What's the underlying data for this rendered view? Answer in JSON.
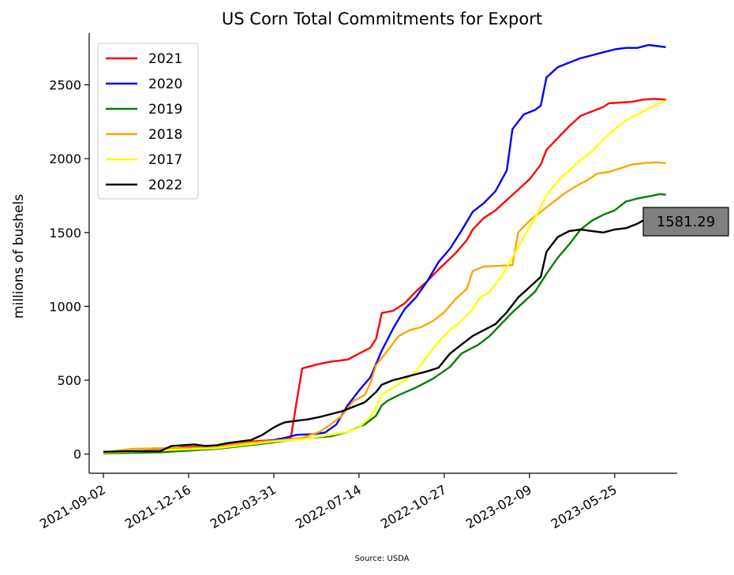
{
  "chart_data": {
    "type": "line",
    "title": "US Corn Total Commitments for Export",
    "xlabel": "",
    "ylabel": "millions of bushels",
    "source": "Source: USDA",
    "ylim": [
      -130,
      2850
    ],
    "y_ticks": [
      0,
      500,
      1000,
      1500,
      2000,
      2500
    ],
    "x_ticks": [
      "2021-09-02",
      "2021-12-16",
      "2022-03-31",
      "2022-07-14",
      "2022-10-27",
      "2023-02-09",
      "2023-05-25"
    ],
    "xlim_weeks": [
      -2.5,
      101
    ],
    "legend_position": "top-left",
    "annotation": {
      "text": "1581.29",
      "color": "#808080"
    },
    "series": [
      {
        "name": "2021",
        "color": "#ff0000",
        "points": [
          [
            0,
            10
          ],
          [
            5,
            15
          ],
          [
            10,
            30
          ],
          [
            14,
            45
          ],
          [
            20,
            55
          ],
          [
            26,
            85
          ],
          [
            30,
            95
          ],
          [
            33,
            110
          ],
          [
            34,
            350
          ],
          [
            35,
            580
          ],
          [
            36,
            590
          ],
          [
            38,
            610
          ],
          [
            40,
            625
          ],
          [
            43,
            640
          ],
          [
            45,
            680
          ],
          [
            47,
            720
          ],
          [
            48,
            780
          ],
          [
            49,
            955
          ],
          [
            51,
            970
          ],
          [
            53,
            1020
          ],
          [
            55,
            1100
          ],
          [
            57,
            1170
          ],
          [
            59,
            1250
          ],
          [
            62,
            1360
          ],
          [
            64,
            1450
          ],
          [
            65,
            1520
          ],
          [
            67,
            1600
          ],
          [
            69,
            1650
          ],
          [
            71,
            1720
          ],
          [
            73,
            1790
          ],
          [
            75,
            1860
          ],
          [
            77,
            1960
          ],
          [
            78,
            2060
          ],
          [
            80,
            2140
          ],
          [
            82,
            2220
          ],
          [
            84,
            2290
          ],
          [
            86,
            2320
          ],
          [
            88,
            2350
          ],
          [
            89,
            2375
          ],
          [
            91,
            2380
          ],
          [
            93,
            2385
          ],
          [
            95,
            2400
          ],
          [
            97,
            2405
          ],
          [
            99,
            2400
          ]
        ]
      },
      {
        "name": "2020",
        "color": "#0000ff",
        "points": [
          [
            0,
            5
          ],
          [
            10,
            15
          ],
          [
            20,
            40
          ],
          [
            28,
            80
          ],
          [
            32,
            110
          ],
          [
            34,
            130
          ],
          [
            37,
            135
          ],
          [
            39,
            145
          ],
          [
            41,
            200
          ],
          [
            43,
            330
          ],
          [
            45,
            430
          ],
          [
            47,
            520
          ],
          [
            49,
            700
          ],
          [
            51,
            850
          ],
          [
            53,
            980
          ],
          [
            55,
            1060
          ],
          [
            57,
            1170
          ],
          [
            59,
            1300
          ],
          [
            61,
            1390
          ],
          [
            63,
            1510
          ],
          [
            65,
            1640
          ],
          [
            67,
            1700
          ],
          [
            69,
            1780
          ],
          [
            71,
            1920
          ],
          [
            72,
            2200
          ],
          [
            74,
            2300
          ],
          [
            76,
            2330
          ],
          [
            77,
            2360
          ],
          [
            78,
            2550
          ],
          [
            80,
            2620
          ],
          [
            82,
            2650
          ],
          [
            84,
            2680
          ],
          [
            86,
            2700
          ],
          [
            88,
            2720
          ],
          [
            90,
            2740
          ],
          [
            92,
            2750
          ],
          [
            94,
            2750
          ],
          [
            96,
            2770
          ],
          [
            99,
            2755
          ]
        ]
      },
      {
        "name": "2019",
        "color": "#008000",
        "points": [
          [
            0,
            5
          ],
          [
            10,
            12
          ],
          [
            20,
            35
          ],
          [
            28,
            70
          ],
          [
            35,
            105
          ],
          [
            40,
            120
          ],
          [
            43,
            150
          ],
          [
            46,
            200
          ],
          [
            48,
            260
          ],
          [
            49,
            330
          ],
          [
            50,
            360
          ],
          [
            52,
            400
          ],
          [
            55,
            450
          ],
          [
            58,
            510
          ],
          [
            61,
            590
          ],
          [
            63,
            680
          ],
          [
            65,
            720
          ],
          [
            66,
            740
          ],
          [
            68,
            800
          ],
          [
            70,
            880
          ],
          [
            72,
            960
          ],
          [
            74,
            1030
          ],
          [
            76,
            1100
          ],
          [
            78,
            1220
          ],
          [
            80,
            1330
          ],
          [
            82,
            1420
          ],
          [
            84,
            1520
          ],
          [
            86,
            1580
          ],
          [
            88,
            1620
          ],
          [
            90,
            1650
          ],
          [
            91,
            1680
          ],
          [
            92,
            1710
          ],
          [
            94,
            1730
          ],
          [
            96,
            1745
          ],
          [
            98,
            1760
          ],
          [
            99,
            1755
          ]
        ]
      },
      {
        "name": "2018",
        "color": "#ffa500",
        "points": [
          [
            0,
            10
          ],
          [
            5,
            35
          ],
          [
            10,
            40
          ],
          [
            15,
            40
          ],
          [
            20,
            50
          ],
          [
            25,
            75
          ],
          [
            30,
            90
          ],
          [
            35,
            110
          ],
          [
            38,
            150
          ],
          [
            40,
            200
          ],
          [
            42,
            260
          ],
          [
            44,
            360
          ],
          [
            46,
            400
          ],
          [
            47,
            480
          ],
          [
            48,
            600
          ],
          [
            50,
            700
          ],
          [
            52,
            800
          ],
          [
            54,
            840
          ],
          [
            56,
            860
          ],
          [
            58,
            900
          ],
          [
            60,
            960
          ],
          [
            62,
            1050
          ],
          [
            64,
            1120
          ],
          [
            65,
            1240
          ],
          [
            67,
            1270
          ],
          [
            70,
            1275
          ],
          [
            72,
            1280
          ],
          [
            73,
            1500
          ],
          [
            75,
            1580
          ],
          [
            77,
            1640
          ],
          [
            79,
            1700
          ],
          [
            81,
            1760
          ],
          [
            83,
            1810
          ],
          [
            85,
            1850
          ],
          [
            87,
            1900
          ],
          [
            89,
            1910
          ],
          [
            91,
            1935
          ],
          [
            93,
            1960
          ],
          [
            95,
            1970
          ],
          [
            97,
            1975
          ],
          [
            99,
            1970
          ]
        ]
      },
      {
        "name": "2017",
        "color": "#ffff00",
        "points": [
          [
            0,
            10
          ],
          [
            10,
            25
          ],
          [
            20,
            40
          ],
          [
            30,
            85
          ],
          [
            35,
            100
          ],
          [
            40,
            130
          ],
          [
            43,
            150
          ],
          [
            45,
            180
          ],
          [
            47,
            250
          ],
          [
            48,
            320
          ],
          [
            49,
            400
          ],
          [
            51,
            450
          ],
          [
            53,
            500
          ],
          [
            55,
            560
          ],
          [
            57,
            660
          ],
          [
            59,
            760
          ],
          [
            61,
            840
          ],
          [
            63,
            900
          ],
          [
            65,
            980
          ],
          [
            66,
            1050
          ],
          [
            68,
            1100
          ],
          [
            70,
            1200
          ],
          [
            72,
            1330
          ],
          [
            74,
            1470
          ],
          [
            76,
            1600
          ],
          [
            78,
            1750
          ],
          [
            80,
            1850
          ],
          [
            82,
            1920
          ],
          [
            84,
            1990
          ],
          [
            86,
            2050
          ],
          [
            88,
            2130
          ],
          [
            90,
            2200
          ],
          [
            92,
            2260
          ],
          [
            94,
            2300
          ],
          [
            96,
            2340
          ],
          [
            98,
            2380
          ],
          [
            99,
            2390
          ]
        ]
      },
      {
        "name": "2022",
        "color": "#000000",
        "points": [
          [
            0,
            15
          ],
          [
            5,
            20
          ],
          [
            10,
            20
          ],
          [
            12,
            55
          ],
          [
            14,
            60
          ],
          [
            16,
            65
          ],
          [
            18,
            55
          ],
          [
            20,
            60
          ],
          [
            22,
            75
          ],
          [
            24,
            85
          ],
          [
            26,
            95
          ],
          [
            28,
            130
          ],
          [
            30,
            180
          ],
          [
            31,
            200
          ],
          [
            32,
            215
          ],
          [
            34,
            225
          ],
          [
            36,
            235
          ],
          [
            38,
            250
          ],
          [
            40,
            270
          ],
          [
            42,
            290
          ],
          [
            44,
            320
          ],
          [
            46,
            350
          ],
          [
            48,
            420
          ],
          [
            49,
            470
          ],
          [
            51,
            500
          ],
          [
            53,
            520
          ],
          [
            55,
            540
          ],
          [
            57,
            560
          ],
          [
            59,
            585
          ],
          [
            61,
            680
          ],
          [
            63,
            740
          ],
          [
            65,
            800
          ],
          [
            67,
            840
          ],
          [
            69,
            880
          ],
          [
            71,
            960
          ],
          [
            73,
            1060
          ],
          [
            75,
            1130
          ],
          [
            77,
            1200
          ],
          [
            78,
            1370
          ],
          [
            80,
            1470
          ],
          [
            82,
            1510
          ],
          [
            84,
            1520
          ],
          [
            86,
            1510
          ],
          [
            88,
            1500
          ],
          [
            90,
            1520
          ],
          [
            92,
            1530
          ],
          [
            94,
            1560
          ],
          [
            95,
            1581.29
          ]
        ]
      }
    ]
  }
}
